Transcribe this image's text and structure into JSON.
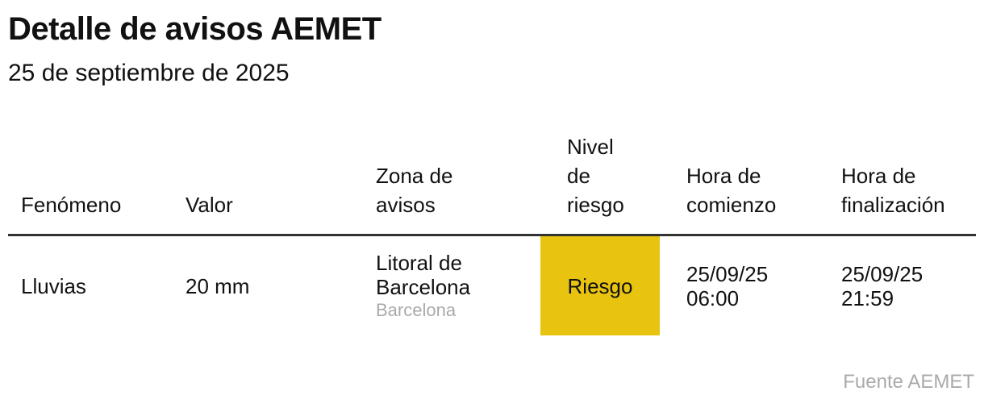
{
  "header": {
    "title": "Detalle de avisos AEMET",
    "subtitle": "25 de septiembre de 2025"
  },
  "table": {
    "columns": [
      "Fenómeno",
      "Valor",
      "Zona de avisos",
      "Nivel de riesgo",
      "Hora de comienzo",
      "Hora de finalización"
    ],
    "rows": [
      [
        "Lluvias",
        "20 mm",
        {
          "text": "Litoral de Barcelona",
          "sub": "Barcelona"
        },
        {
          "text": "Riesgo",
          "color": "#e8c411"
        },
        "25/09/25 06:00",
        "25/09/25 21:59"
      ]
    ]
  },
  "source": "Fuente AEMET"
}
